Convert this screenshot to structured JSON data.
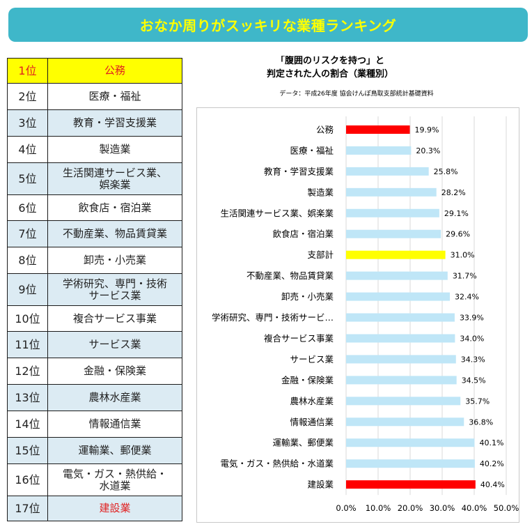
{
  "banner": {
    "title": "おなか周りがスッキリな業種ランキング"
  },
  "ranking": [
    {
      "rank": "1位",
      "industry": "公務"
    },
    {
      "rank": "2位",
      "industry": "医療・福祉"
    },
    {
      "rank": "3位",
      "industry": "教育・学習支援業"
    },
    {
      "rank": "4位",
      "industry": "製造業"
    },
    {
      "rank": "5位",
      "industry": "生活関連サービス業、\n娯楽業"
    },
    {
      "rank": "6位",
      "industry": "飲食店・宿泊業"
    },
    {
      "rank": "7位",
      "industry": "不動産業、物品賃貸業"
    },
    {
      "rank": "8位",
      "industry": "卸売・小売業"
    },
    {
      "rank": "9位",
      "industry": "学術研究、専門・技術\nサービス業"
    },
    {
      "rank": "10位",
      "industry": "複合サービス事業"
    },
    {
      "rank": "11位",
      "industry": "サービス業"
    },
    {
      "rank": "12位",
      "industry": "金融・保険業"
    },
    {
      "rank": "13位",
      "industry": "農林水産業"
    },
    {
      "rank": "14位",
      "industry": "情報通信業"
    },
    {
      "rank": "15位",
      "industry": "運輸業、郵便業"
    },
    {
      "rank": "16位",
      "industry": "電気・ガス・熱供給・\n水道業"
    },
    {
      "rank": "17位",
      "industry": "建設業"
    }
  ],
  "chart_data": {
    "type": "bar",
    "orientation": "horizontal",
    "title_lines": [
      "「腹囲のリスクを持つ」と",
      "判定された人の割合（業種別）"
    ],
    "subtitle": "データ：平成26年度 協会けんぽ鳥取支部統計基礎資料",
    "categories": [
      "公務",
      "医療・福祉",
      "教育・学習支援業",
      "製造業",
      "生活関連サービス業、娯楽業",
      "飲食店・宿泊業",
      "支部計",
      "不動産業、物品賃貸業",
      "卸売・小売業",
      "学術研究、専門・技術サービ…",
      "複合サービス事業",
      "サービス業",
      "金融・保険業",
      "農林水産業",
      "情報通信業",
      "運輸業、郵便業",
      "電気・ガス・熱供給・水道業",
      "建設業"
    ],
    "values": [
      19.9,
      20.3,
      25.8,
      28.2,
      29.1,
      29.6,
      31.0,
      31.7,
      32.4,
      33.9,
      34.0,
      34.3,
      34.5,
      35.7,
      36.8,
      40.1,
      40.2,
      40.4
    ],
    "value_labels": [
      "19.9%",
      "20.3%",
      "25.8%",
      "28.2%",
      "29.1%",
      "29.6%",
      "31.0%",
      "31.7%",
      "32.4%",
      "33.9%",
      "34.0%",
      "34.3%",
      "34.5%",
      "35.7%",
      "36.8%",
      "40.1%",
      "40.2%",
      "40.4%"
    ],
    "bar_colors": [
      "#ff0000",
      "#bfe6f7",
      "#bfe6f7",
      "#bfe6f7",
      "#bfe6f7",
      "#bfe6f7",
      "#ffff00",
      "#bfe6f7",
      "#bfe6f7",
      "#bfe6f7",
      "#bfe6f7",
      "#bfe6f7",
      "#bfe6f7",
      "#bfe6f7",
      "#bfe6f7",
      "#bfe6f7",
      "#bfe6f7",
      "#ff0000"
    ],
    "xlim": [
      0,
      50
    ],
    "xticks": [
      "0.0%",
      "10.0%",
      "20.0%",
      "30.0%",
      "40.0%",
      "50.0%"
    ],
    "grid": true
  }
}
